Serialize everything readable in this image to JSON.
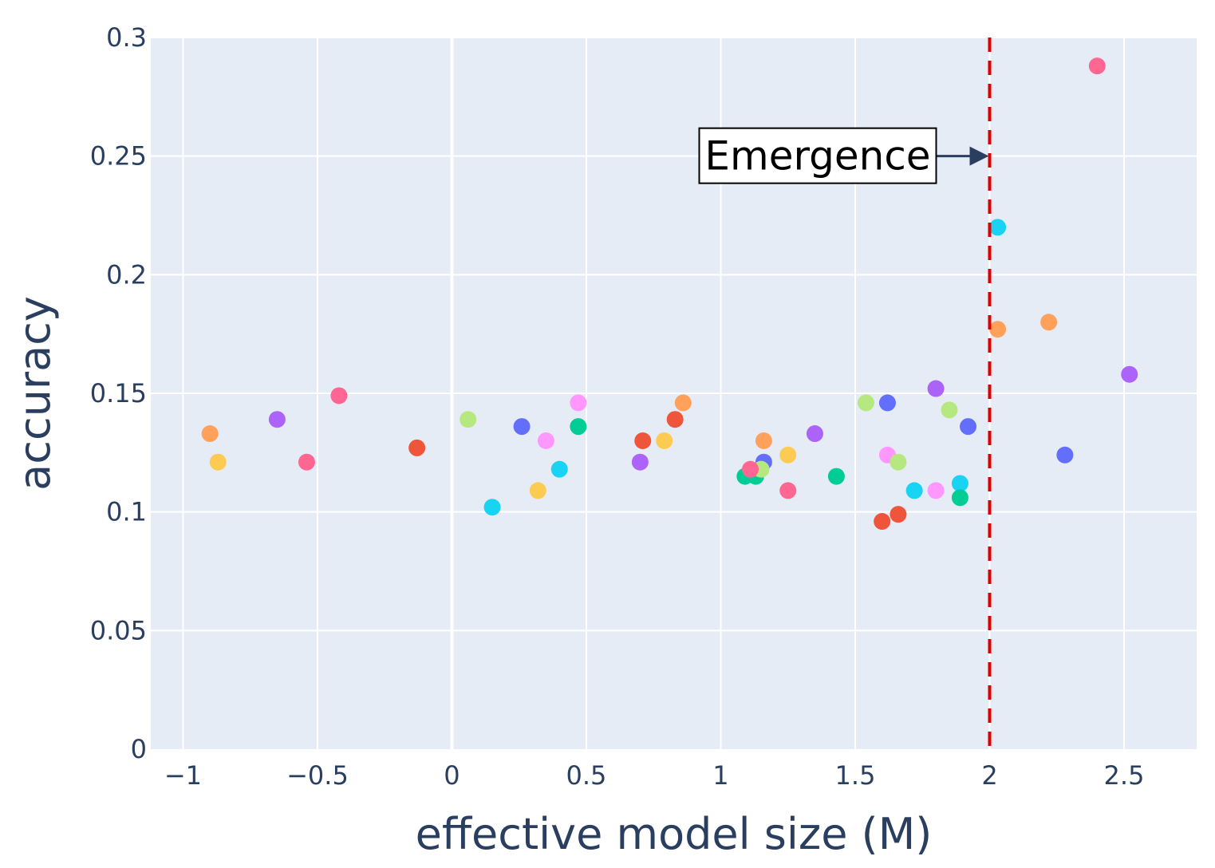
{
  "chart_data": {
    "type": "scatter",
    "title": "",
    "xlabel": "effective model size (M)",
    "ylabel": "accuracy",
    "xlim": [
      -1.12,
      2.77
    ],
    "ylim": [
      0,
      0.3
    ],
    "x_ticks": [
      -1,
      -0.5,
      0,
      0.5,
      1,
      1.5,
      2,
      2.5
    ],
    "x_tick_labels": [
      "−1",
      "−0.5",
      "0",
      "0.5",
      "1",
      "1.5",
      "2",
      "2.5"
    ],
    "y_ticks": [
      0,
      0.05,
      0.1,
      0.15,
      0.2,
      0.25,
      0.3
    ],
    "y_tick_labels": [
      "0",
      "0.05",
      "0.1",
      "0.15",
      "0.2",
      "0.25",
      "0.3"
    ],
    "grid": true,
    "legend": false,
    "threshold": {
      "x": 2.0,
      "color": "#e00000",
      "style": "dashed"
    },
    "annotation": {
      "text": "Emergence",
      "x": 2.0,
      "y": 0.25
    },
    "colors": {
      "plot_bg": "#e5ecf6",
      "grid": "#ffffff",
      "axis_text": "#2a3f5f",
      "arrow": "#2a3f5f"
    },
    "points": [
      {
        "x": -0.9,
        "y": 0.133,
        "color": "#ffa15a"
      },
      {
        "x": -0.87,
        "y": 0.121,
        "color": "#fecb52"
      },
      {
        "x": -0.65,
        "y": 0.139,
        "color": "#ab63fa"
      },
      {
        "x": -0.54,
        "y": 0.121,
        "color": "#ff6692"
      },
      {
        "x": -0.42,
        "y": 0.149,
        "color": "#ff6692"
      },
      {
        "x": -0.13,
        "y": 0.127,
        "color": "#ef553b"
      },
      {
        "x": 0.06,
        "y": 0.139,
        "color": "#b6e880"
      },
      {
        "x": 0.15,
        "y": 0.102,
        "color": "#19d3f3"
      },
      {
        "x": 0.26,
        "y": 0.136,
        "color": "#636efa"
      },
      {
        "x": 0.32,
        "y": 0.109,
        "color": "#fecb52"
      },
      {
        "x": 0.35,
        "y": 0.13,
        "color": "#ff97ff"
      },
      {
        "x": 0.4,
        "y": 0.118,
        "color": "#19d3f3"
      },
      {
        "x": 0.47,
        "y": 0.146,
        "color": "#ff97ff"
      },
      {
        "x": 0.47,
        "y": 0.136,
        "color": "#00cc96"
      },
      {
        "x": 0.7,
        "y": 0.121,
        "color": "#ab63fa"
      },
      {
        "x": 0.71,
        "y": 0.13,
        "color": "#ef553b"
      },
      {
        "x": 0.79,
        "y": 0.13,
        "color": "#fecb52"
      },
      {
        "x": 0.83,
        "y": 0.139,
        "color": "#ef553b"
      },
      {
        "x": 0.86,
        "y": 0.146,
        "color": "#ffa15a"
      },
      {
        "x": 1.09,
        "y": 0.115,
        "color": "#00cc96"
      },
      {
        "x": 1.13,
        "y": 0.115,
        "color": "#00cc96"
      },
      {
        "x": 1.16,
        "y": 0.121,
        "color": "#636efa"
      },
      {
        "x": 1.15,
        "y": 0.118,
        "color": "#b6e880"
      },
      {
        "x": 1.11,
        "y": 0.118,
        "color": "#ff6692"
      },
      {
        "x": 1.16,
        "y": 0.13,
        "color": "#ffa15a"
      },
      {
        "x": 1.25,
        "y": 0.124,
        "color": "#fecb52"
      },
      {
        "x": 1.25,
        "y": 0.109,
        "color": "#ff6692"
      },
      {
        "x": 1.35,
        "y": 0.133,
        "color": "#ab63fa"
      },
      {
        "x": 1.43,
        "y": 0.115,
        "color": "#00cc96"
      },
      {
        "x": 1.54,
        "y": 0.146,
        "color": "#b6e880"
      },
      {
        "x": 1.6,
        "y": 0.096,
        "color": "#ef553b"
      },
      {
        "x": 1.62,
        "y": 0.124,
        "color": "#ff97ff"
      },
      {
        "x": 1.62,
        "y": 0.146,
        "color": "#636efa"
      },
      {
        "x": 1.66,
        "y": 0.121,
        "color": "#b6e880"
      },
      {
        "x": 1.66,
        "y": 0.099,
        "color": "#ef553b"
      },
      {
        "x": 1.72,
        "y": 0.109,
        "color": "#19d3f3"
      },
      {
        "x": 1.8,
        "y": 0.152,
        "color": "#ab63fa"
      },
      {
        "x": 1.8,
        "y": 0.109,
        "color": "#ff97ff"
      },
      {
        "x": 1.85,
        "y": 0.143,
        "color": "#b6e880"
      },
      {
        "x": 1.89,
        "y": 0.112,
        "color": "#19d3f3"
      },
      {
        "x": 1.89,
        "y": 0.106,
        "color": "#00cc96"
      },
      {
        "x": 1.92,
        "y": 0.136,
        "color": "#636efa"
      },
      {
        "x": 2.03,
        "y": 0.22,
        "color": "#19d3f3"
      },
      {
        "x": 2.03,
        "y": 0.177,
        "color": "#ffa15a"
      },
      {
        "x": 2.22,
        "y": 0.18,
        "color": "#ffa15a"
      },
      {
        "x": 2.28,
        "y": 0.124,
        "color": "#636efa"
      },
      {
        "x": 2.4,
        "y": 0.288,
        "color": "#ff6692"
      },
      {
        "x": 2.52,
        "y": 0.158,
        "color": "#ab63fa"
      }
    ]
  }
}
